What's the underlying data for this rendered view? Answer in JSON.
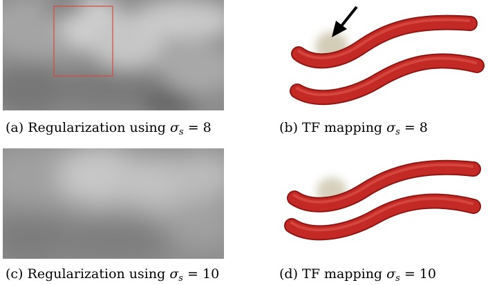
{
  "figure": {
    "panels": [
      {
        "id": "a",
        "tag": "(a)",
        "text": "Regularization using",
        "symbol": "σ",
        "subscript": "s",
        "relation": "= 8",
        "kind": "regularization-image"
      },
      {
        "id": "b",
        "tag": "(b)",
        "text": "TF mapping",
        "symbol": "σ",
        "subscript": "s",
        "relation": "= 8",
        "kind": "tf-rendering"
      },
      {
        "id": "c",
        "tag": "(c)",
        "text": "Regularization using",
        "symbol": "σ",
        "subscript": "s",
        "relation": "= 10",
        "kind": "regularization-image"
      },
      {
        "id": "d",
        "tag": "(d)",
        "text": "TF mapping",
        "symbol": "σ",
        "subscript": "s",
        "relation": "= 10",
        "kind": "tf-rendering"
      }
    ],
    "colors": {
      "highlight_box": "#d9463c",
      "tube": "#c42a25",
      "tube_dark": "#8e1511",
      "arrow": "#000000"
    }
  }
}
